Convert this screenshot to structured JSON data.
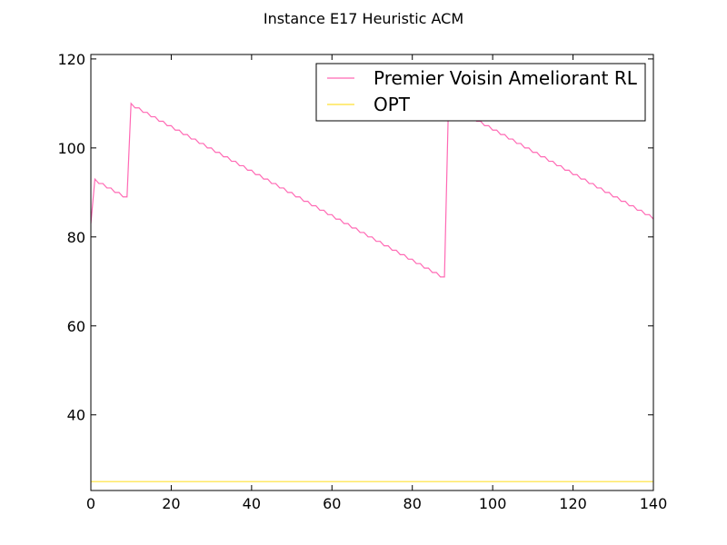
{
  "chart_data": {
    "type": "line",
    "title": "Instance E17 Heuristic ACM",
    "xlabel": "",
    "ylabel": "",
    "xlim": [
      0,
      140
    ],
    "ylim": [
      23,
      121
    ],
    "xticks": [
      0,
      20,
      40,
      60,
      80,
      100,
      120,
      140
    ],
    "yticks": [
      40,
      60,
      80,
      100,
      120
    ],
    "grid": false,
    "legend_position": "top-right",
    "series": [
      {
        "name": "Premier Voisin Ameliorant RL",
        "color": "#ff69b4",
        "x": [
          0,
          1,
          2,
          3,
          4,
          5,
          6,
          7,
          8,
          9,
          10,
          11,
          12,
          13,
          14,
          15,
          16,
          17,
          18,
          19,
          20,
          21,
          22,
          23,
          24,
          25,
          26,
          27,
          28,
          29,
          30,
          31,
          32,
          33,
          34,
          35,
          36,
          37,
          38,
          39,
          40,
          41,
          42,
          43,
          44,
          45,
          46,
          47,
          48,
          49,
          50,
          51,
          52,
          53,
          54,
          55,
          56,
          57,
          58,
          59,
          60,
          61,
          62,
          63,
          64,
          65,
          66,
          67,
          68,
          69,
          70,
          71,
          72,
          73,
          74,
          75,
          76,
          77,
          78,
          79,
          80,
          81,
          82,
          83,
          84,
          85,
          86,
          87,
          88,
          89,
          90,
          91,
          92,
          93,
          94,
          95,
          96,
          97,
          98,
          99,
          100,
          101,
          102,
          103,
          104,
          105,
          106,
          107,
          108,
          109,
          110,
          111,
          112,
          113,
          114,
          115,
          116,
          117,
          118,
          119,
          120,
          121,
          122,
          123,
          124,
          125,
          126,
          127,
          128,
          129,
          130,
          131,
          132,
          133,
          134,
          135,
          136,
          137,
          138,
          139,
          140
        ],
        "values": [
          83,
          93,
          92,
          92,
          91,
          91,
          90,
          90,
          89,
          89,
          110,
          109,
          109,
          108,
          108,
          107,
          107,
          106,
          106,
          105,
          105,
          104,
          104,
          103,
          103,
          102,
          102,
          101,
          101,
          100,
          100,
          99,
          99,
          98,
          98,
          97,
          97,
          96,
          96,
          95,
          95,
          94,
          94,
          93,
          93,
          92,
          92,
          91,
          91,
          90,
          90,
          89,
          89,
          88,
          88,
          87,
          87,
          86,
          86,
          85,
          85,
          84,
          84,
          83,
          83,
          82,
          82,
          81,
          81,
          80,
          80,
          79,
          79,
          78,
          78,
          77,
          77,
          76,
          76,
          75,
          75,
          74,
          74,
          73,
          73,
          72,
          72,
          71,
          71,
          110,
          109,
          109,
          108,
          108,
          107,
          107,
          106,
          106,
          105,
          105,
          104,
          104,
          103,
          103,
          102,
          102,
          101,
          101,
          100,
          100,
          99,
          99,
          98,
          98,
          97,
          97,
          96,
          96,
          95,
          95,
          94,
          94,
          93,
          93,
          92,
          92,
          91,
          91,
          90,
          90,
          89,
          89,
          88,
          88,
          87,
          87,
          86,
          86,
          85,
          85,
          84
        ]
      },
      {
        "name": "OPT",
        "color": "#ffe033",
        "x": [
          0,
          140
        ],
        "values": [
          25,
          25
        ]
      }
    ]
  }
}
